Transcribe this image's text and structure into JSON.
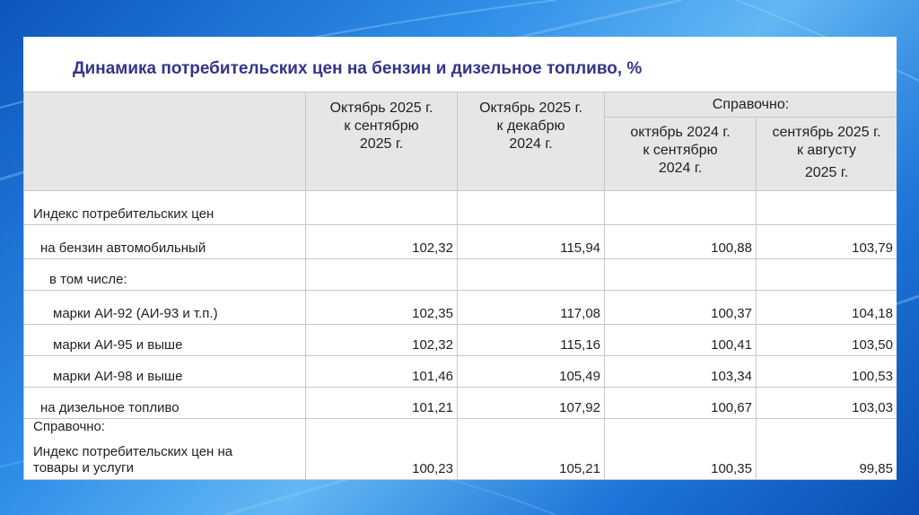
{
  "title": "Динамика потребительских цен на бензин и дизельное топливо, %",
  "header": {
    "col1": [
      "Октябрь 2025 г.",
      "к сентябрю",
      "2025 г."
    ],
    "col2": [
      "Октябрь 2025 г.",
      "к декабрю",
      "2024 г."
    ],
    "reference": "Справочно:",
    "col3": [
      "октябрь 2024 г.",
      "к сентябрю",
      "2024 г."
    ],
    "col4": [
      "сентябрь 2025 г.",
      "к августу",
      "2025 г."
    ]
  },
  "rows": [
    {
      "label": "Индекс потребительских цен",
      "values": [
        "",
        "",
        "",
        ""
      ]
    },
    {
      "label": "на бензин автомобильный",
      "values": [
        "102,32",
        "115,94",
        "100,88",
        "103,79"
      ]
    },
    {
      "label": "в том числе:",
      "values": [
        "",
        "",
        "",
        ""
      ]
    },
    {
      "label": "марки АИ-92 (АИ-93 и т.п.)",
      "values": [
        "102,35",
        "117,08",
        "100,37",
        "104,18"
      ]
    },
    {
      "label": "марки АИ-95 и выше",
      "values": [
        "102,32",
        "115,16",
        "100,41",
        "103,50"
      ]
    },
    {
      "label": "марки АИ-98 и выше",
      "values": [
        "101,46",
        "105,49",
        "103,34",
        "100,53"
      ]
    },
    {
      "label": "на дизельное топливо",
      "values": [
        "101,21",
        "107,92",
        "100,67",
        "103,03"
      ]
    },
    {
      "label": "Справочно:",
      "label2": "Индекс потребительских цен на товары и услуги",
      "values": [
        "100,23",
        "105,21",
        "100,35",
        "99,85"
      ]
    }
  ]
}
